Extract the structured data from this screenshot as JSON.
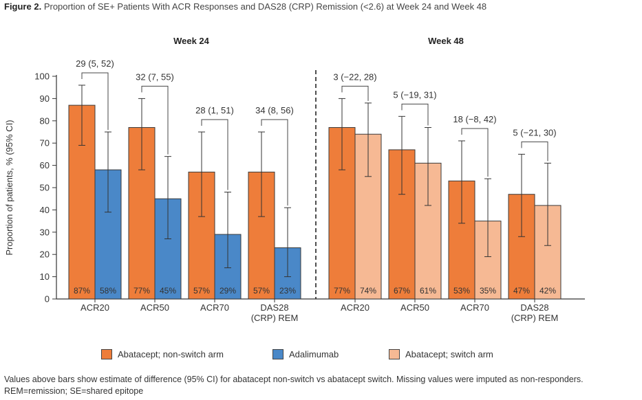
{
  "title_prefix": "Figure 2.",
  "title_text": "Proportion of SE+ Patients With ACR Responses and DAS28 (CRP) Remission (<2.6) at Week 24 and Week 48",
  "footnote_line1": "Values above bars show estimate of difference (95% CI) for abatacept non-switch vs abatacept switch. Missing values were imputed as non-responders.",
  "footnote_line2": "REM=remission; SE=shared epitope",
  "colors": {
    "orange": "#ee7d3a",
    "blue": "#4a88c8",
    "peach": "#f6b994",
    "axis": "#333333"
  },
  "legend": [
    {
      "label": "Abatacept; non-switch arm",
      "color": "#ee7d3a"
    },
    {
      "label": "Adalimumab",
      "color": "#4a88c8"
    },
    {
      "label": "Abatacept; switch arm",
      "color": "#f6b994"
    }
  ],
  "chart_data": {
    "type": "bar",
    "ylabel": "Proportion of patients, % (95% CI)",
    "ylim": [
      0,
      100
    ],
    "yticks": [
      0,
      10,
      20,
      30,
      40,
      50,
      60,
      70,
      80,
      90,
      100
    ],
    "panels": [
      {
        "title": "Week 24",
        "categories": [
          "ACR20",
          "ACR50",
          "ACR70",
          "DAS28\n(CRP) REM"
        ],
        "series": [
          {
            "name": "Abatacept; non-switch arm",
            "color": "#ee7d3a",
            "values": [
              87,
              77,
              57,
              57
            ],
            "labels": [
              "87%",
              "77%",
              "57%",
              "57%"
            ],
            "ci": [
              [
                69,
                96
              ],
              [
                58,
                90
              ],
              [
                37,
                75
              ],
              [
                37,
                75
              ]
            ]
          },
          {
            "name": "Adalimumab",
            "color": "#4a88c8",
            "values": [
              58,
              45,
              29,
              23
            ],
            "labels": [
              "58%",
              "45%",
              "29%",
              "23%"
            ],
            "ci": [
              [
                39,
                75
              ],
              [
                27,
                64
              ],
              [
                14,
                48
              ],
              [
                10,
                41
              ]
            ]
          }
        ],
        "differences": [
          "29 (5, 52)",
          "32 (7, 55)",
          "28 (1, 51)",
          "34 (8, 56)"
        ]
      },
      {
        "title": "Week 48",
        "categories": [
          "ACR20",
          "ACR50",
          "ACR70",
          "DAS28\n(CRP) REM"
        ],
        "series": [
          {
            "name": "Abatacept; non-switch arm",
            "color": "#ee7d3a",
            "values": [
              77,
              67,
              53,
              47
            ],
            "labels": [
              "77%",
              "67%",
              "53%",
              "47%"
            ],
            "ci": [
              [
                58,
                90
              ],
              [
                47,
                82
              ],
              [
                34,
                71
              ],
              [
                28,
                65
              ]
            ]
          },
          {
            "name": "Abatacept; switch arm",
            "color": "#f6b994",
            "values": [
              74,
              61,
              35,
              42
            ],
            "labels": [
              "74%",
              "61%",
              "35%",
              "42%"
            ],
            "ci": [
              [
                55,
                88
              ],
              [
                42,
                77
              ],
              [
                19,
                54
              ],
              [
                24,
                61
              ]
            ]
          }
        ],
        "differences": [
          "3 (−22, 28)",
          "5 (−19, 31)",
          "18 (−8, 42)",
          "5 (−21, 30)"
        ]
      }
    ]
  }
}
